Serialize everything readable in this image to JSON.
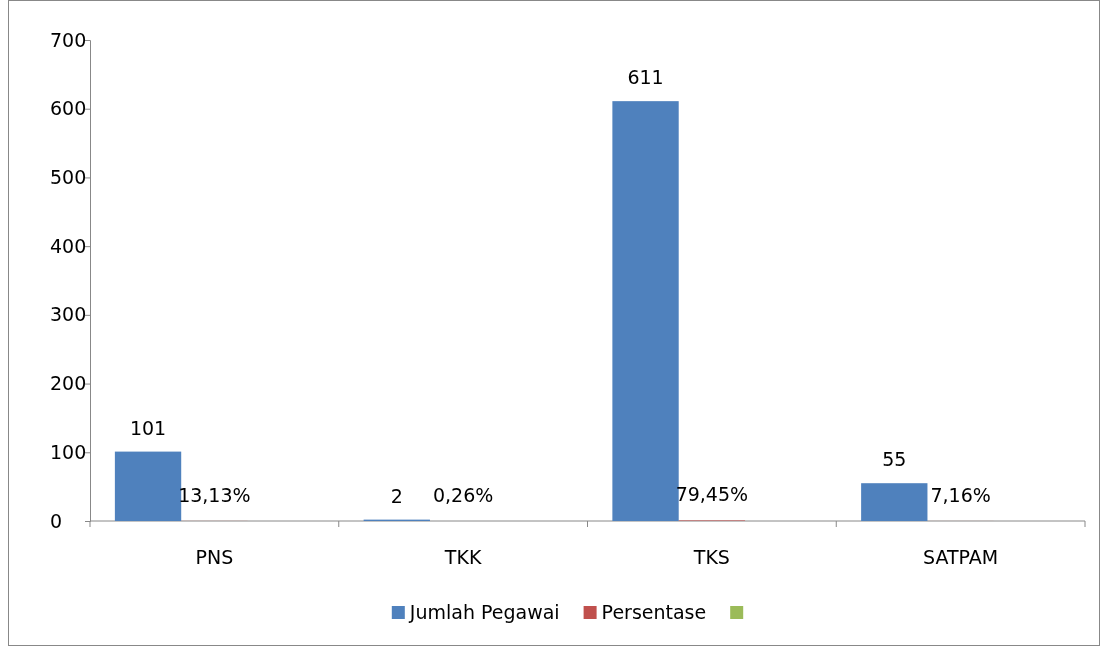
{
  "chart_data": {
    "type": "bar",
    "categories": [
      "PNS",
      "TKK",
      "TKS",
      "SATPAM"
    ],
    "series": [
      {
        "name": "Jumlah Pegawai",
        "color": "#4f81bd",
        "values": [
          101,
          2,
          611,
          55
        ],
        "value_labels": [
          "101",
          "2",
          "611",
          "55"
        ]
      },
      {
        "name": "Persentase",
        "color": "#c0504d",
        "values": [
          0.1313,
          0.0026,
          0.7945,
          0.0716
        ],
        "value_labels": [
          "13,13%",
          "0,26%",
          "79,45%",
          "7,16%"
        ]
      },
      {
        "color": "#9bbb59",
        "values": [
          null,
          null,
          null,
          null
        ]
      }
    ],
    "ylim": [
      0,
      700
    ],
    "yticks": [
      0,
      100,
      200,
      300,
      400,
      500,
      600,
      700
    ],
    "grid": false,
    "legend": "bottom"
  }
}
